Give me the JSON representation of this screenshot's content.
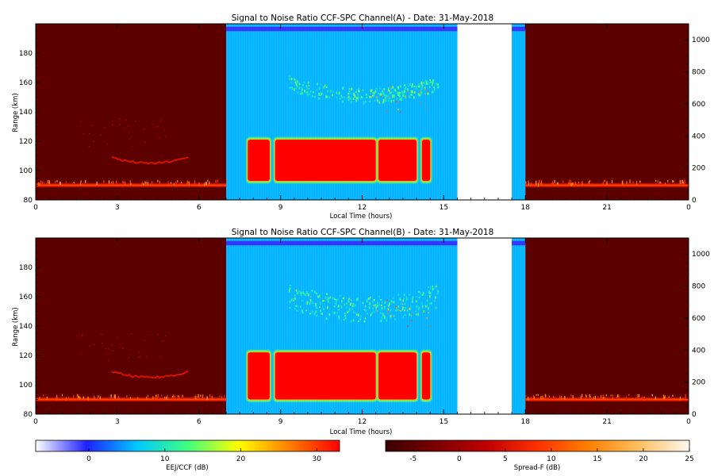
{
  "chart_data": [
    {
      "type": "heatmap",
      "title": "Signal to Noise Ratio CCF-SPC Channel(A) - Date: 31-May-2018",
      "xlabel": "Local Time (hours)",
      "ylabel": "Range (km)",
      "xlim": [
        0,
        24
      ],
      "ylim": [
        80,
        200
      ],
      "x_ticks": [
        "0",
        "3",
        "6",
        "9",
        "12",
        "15",
        "18",
        "21",
        "0"
      ],
      "y_ticks": [
        "80",
        "100",
        "120",
        "140",
        "160",
        "180"
      ],
      "y2_ticks": [
        "0",
        "200",
        "400",
        "600",
        "800",
        "1000"
      ],
      "y2_range": [
        0,
        1100
      ],
      "segments": [
        {
          "name": "Spread-F night",
          "x": [
            0,
            7.0
          ],
          "colorbar": "Spread-F (dB)",
          "background_dB": -5
        },
        {
          "name": "EEJ/CCF day",
          "x": [
            7.0,
            15.5
          ],
          "colorbar": "EEJ/CCF (dB)",
          "background_dB": 6
        },
        {
          "name": "EEJ/CCF day",
          "x": [
            17.5,
            18.0
          ],
          "colorbar": "EEJ/CCF (dB)",
          "background_dB": 6
        },
        {
          "name": "Spread-F night",
          "x": [
            18.0,
            24.0
          ],
          "colorbar": "Spread-F (dB)",
          "background_dB": -5
        }
      ],
      "features": [
        {
          "name": "EEJ strong echoes",
          "range_km": [
            93,
            121
          ],
          "time_h": [
            [
              7.8,
              8.6
            ],
            [
              8.8,
              12.5
            ],
            [
              12.6,
              14.0
            ],
            [
              14.2,
              14.5
            ]
          ],
          "snr_dB": 33
        },
        {
          "name": "150 km echoes",
          "range_km": [
            145,
            162
          ],
          "time_h": [
            9.3,
            14.8
          ],
          "snr_dB": 13
        },
        {
          "name": "E-region layer (night)",
          "range_km": [
            88,
            92
          ],
          "time_h": [
            0,
            7.0
          ],
          "snr_dB": 10
        },
        {
          "name": "Valley layer",
          "range_km": [
            104,
            112
          ],
          "time_h": [
            2.8,
            5.6
          ],
          "snr_dB": 5
        }
      ]
    },
    {
      "type": "heatmap",
      "title": "Signal to Noise Ratio CCF-SPC Channel(B) - Date: 31-May-2018",
      "xlabel": "Local Time (hours)",
      "ylabel": "Range (km)",
      "xlim": [
        0,
        24
      ],
      "ylim": [
        80,
        200
      ],
      "x_ticks": [
        "0",
        "3",
        "6",
        "9",
        "12",
        "15",
        "18",
        "21",
        "0"
      ],
      "y_ticks": [
        "80",
        "100",
        "120",
        "140",
        "160",
        "180"
      ],
      "y2_ticks": [
        "0",
        "200",
        "400",
        "600",
        "800",
        "1000"
      ],
      "y2_range": [
        0,
        1100
      ],
      "segments": [
        {
          "name": "Spread-F night",
          "x": [
            0,
            7.0
          ],
          "colorbar": "Spread-F (dB)",
          "background_dB": -5
        },
        {
          "name": "EEJ/CCF day",
          "x": [
            7.0,
            15.5
          ],
          "colorbar": "EEJ/CCF (dB)",
          "background_dB": 6
        },
        {
          "name": "EEJ/CCF day",
          "x": [
            17.5,
            18.0
          ],
          "colorbar": "EEJ/CCF (dB)",
          "background_dB": 6
        },
        {
          "name": "Spread-F night",
          "x": [
            18.0,
            24.0
          ],
          "colorbar": "Spread-F (dB)",
          "background_dB": -5
        }
      ],
      "features": [
        {
          "name": "EEJ strong echoes",
          "range_km": [
            90,
            122
          ],
          "time_h": [
            [
              7.8,
              8.6
            ],
            [
              8.8,
              12.5
            ],
            [
              12.6,
              14.0
            ],
            [
              14.2,
              14.5
            ]
          ],
          "snr_dB": 33
        },
        {
          "name": "150 km echoes",
          "range_km": [
            140,
            168
          ],
          "time_h": [
            9.3,
            14.8
          ],
          "snr_dB": 13
        },
        {
          "name": "E-region layer (night)",
          "range_km": [
            88,
            92
          ],
          "time_h": [
            0,
            7.0
          ],
          "snr_dB": 10
        },
        {
          "name": "Valley layer",
          "range_km": [
            104,
            112
          ],
          "time_h": [
            2.8,
            5.6
          ],
          "snr_dB": 5
        }
      ]
    },
    {
      "type": "colorbar",
      "label": "EEJ/CCF (dB)",
      "range": [
        -7,
        33
      ],
      "ticks": [
        "0",
        "10",
        "20",
        "30"
      ],
      "colors": [
        "#ffffff",
        "#2020ff",
        "#00c8ff",
        "#40ff80",
        "#ffff00",
        "#ff8000",
        "#ff0000"
      ]
    },
    {
      "type": "colorbar",
      "label": "Spread-F (dB)",
      "range": [
        -8,
        25
      ],
      "ticks": [
        "-5",
        "0",
        "5",
        "10",
        "15",
        "20",
        "25"
      ],
      "colors": [
        "#3a0000",
        "#7a0000",
        "#c00000",
        "#ff3000",
        "#ff8000",
        "#ffc060",
        "#fff8f0"
      ]
    }
  ]
}
